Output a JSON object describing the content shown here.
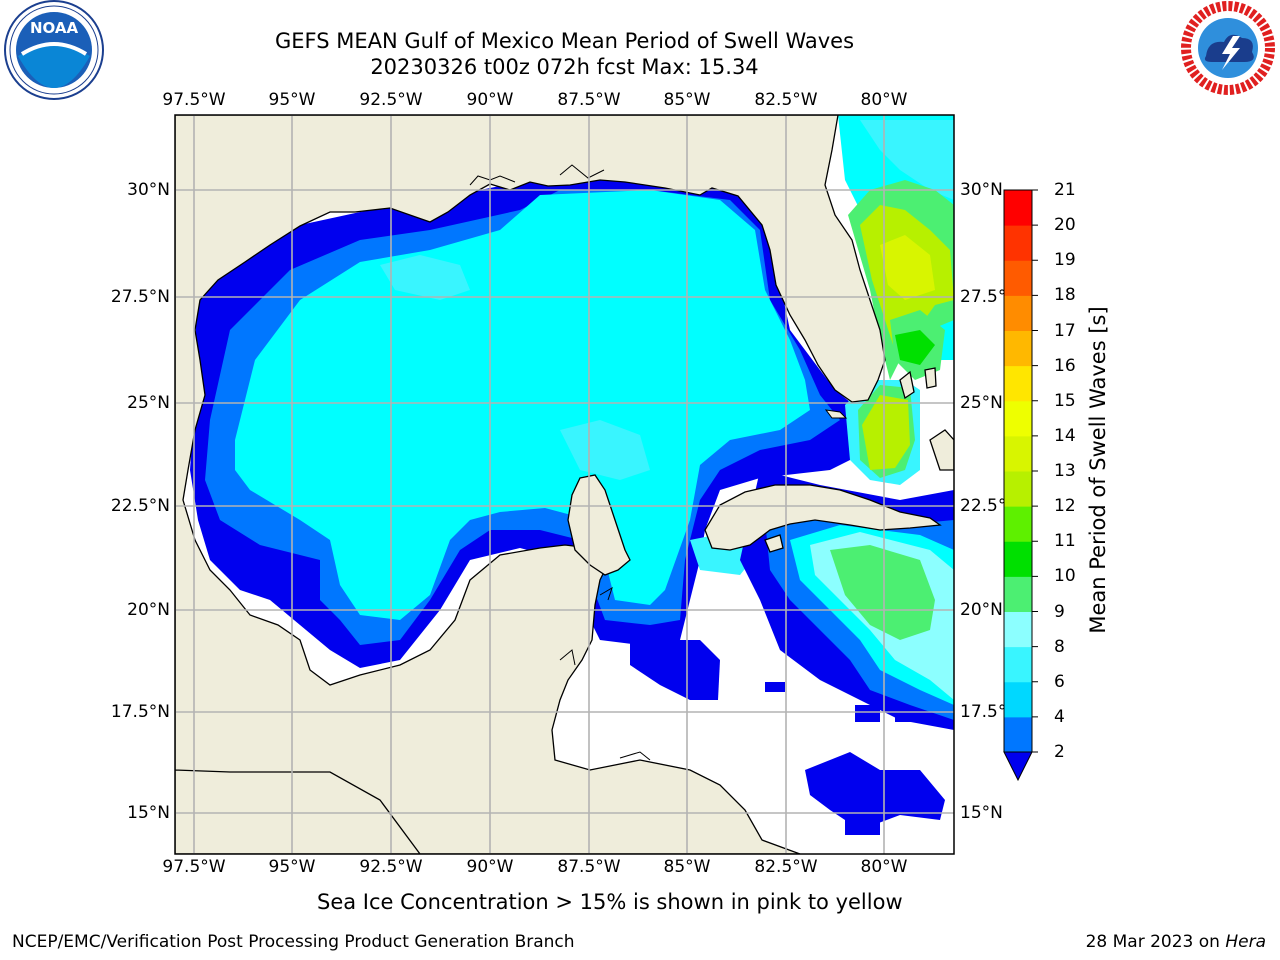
{
  "title_line1": "GEFS MEAN Gulf of Mexico Mean Period of Swell Waves",
  "title_line2": "20230326 t00z 072h fcst   Max: 15.34",
  "lon_ticks": [
    "97.5°W",
    "95°W",
    "92.5°W",
    "90°W",
    "87.5°W",
    "85°W",
    "82.5°W",
    "80°W"
  ],
  "lat_ticks": [
    "30°N",
    "27.5°N",
    "25°N",
    "22.5°N",
    "20°N",
    "17.5°N",
    "15°N"
  ],
  "colorbar": {
    "label": "Mean Period of Swell Waves [s]",
    "ticks": [
      "2",
      "4",
      "6",
      "8",
      "9",
      "10",
      "11",
      "12",
      "13",
      "14",
      "15",
      "16",
      "17",
      "18",
      "19",
      "20",
      "21"
    ],
    "colors": [
      "#0077ff",
      "#00d8ff",
      "#39f5ff",
      "#8cffff",
      "#4cef72",
      "#00e000",
      "#5ef000",
      "#b7f000",
      "#d8f500",
      "#eeff00",
      "#ffe600",
      "#ffb800",
      "#ff8c00",
      "#ff5b00",
      "#ff3300",
      "#ff0000"
    ],
    "under_color": "#0000ee"
  },
  "note": "Sea Ice Concentration > 15% is shown in pink to yellow",
  "footer_left": "NCEP/EMC/Verification Post Processing Product Generation Branch",
  "footer_date": "28 Mar 2023 on ",
  "footer_host": "Hera",
  "colors": {
    "land": "#efeddb",
    "grid": "#b3b3b3",
    "sea_base": "#00ffff"
  },
  "logos": {
    "left": "NOAA",
    "right": "NATIONAL WEATHER SERVICE"
  }
}
